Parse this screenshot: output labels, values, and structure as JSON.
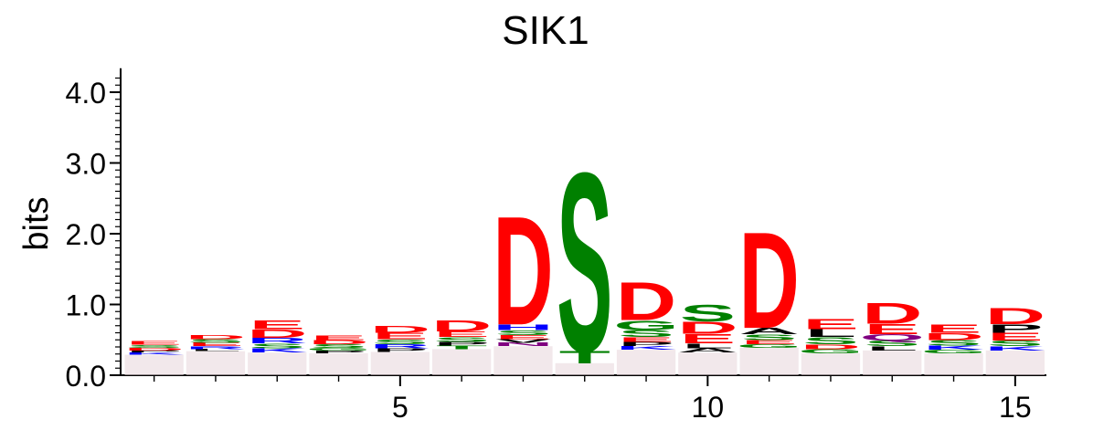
{
  "chart_data": {
    "type": "sequence-logo",
    "title": "SIK1",
    "ylabel": "bits",
    "xlabel": "",
    "ylim": [
      0,
      4.3
    ],
    "y_ticks": [
      "0.0",
      "1.0",
      "2.0",
      "3.0",
      "4.0"
    ],
    "x_ticks": [
      5,
      10,
      15
    ],
    "positions": [
      1,
      2,
      3,
      4,
      5,
      6,
      7,
      8,
      9,
      10,
      11,
      12,
      13,
      14,
      15
    ],
    "colors": {
      "acidic": "#ff0000",
      "polar": "#008000",
      "basic": "#0000ff",
      "hydrophobic": "#000000",
      "amide": "#800080"
    },
    "columns": [
      {
        "position": 1,
        "total_bits": 0.48,
        "stacks": [
          {
            "letter": "E",
            "bits": 0.05,
            "color": "#ff0000"
          },
          {
            "letter": "D",
            "bits": 0.04,
            "color": "#ff0000"
          },
          {
            "letter": "S",
            "bits": 0.04,
            "color": "#008000"
          },
          {
            "letter": "K",
            "bits": 0.03,
            "color": "#0000ff"
          },
          {
            "letter": "P",
            "bits": 0.03,
            "color": "#000000"
          }
        ]
      },
      {
        "position": 2,
        "total_bits": 0.57,
        "stacks": [
          {
            "letter": "D",
            "bits": 0.06,
            "color": "#ff0000"
          },
          {
            "letter": "E",
            "bits": 0.05,
            "color": "#ff0000"
          },
          {
            "letter": "S",
            "bits": 0.05,
            "color": "#008000"
          },
          {
            "letter": "R",
            "bits": 0.04,
            "color": "#0000ff"
          },
          {
            "letter": "L",
            "bits": 0.03,
            "color": "#000000"
          }
        ]
      },
      {
        "position": 3,
        "total_bits": 0.78,
        "stacks": [
          {
            "letter": "E",
            "bits": 0.13,
            "color": "#ff0000"
          },
          {
            "letter": "D",
            "bits": 0.12,
            "color": "#ff0000"
          },
          {
            "letter": "R",
            "bits": 0.08,
            "color": "#0000ff"
          },
          {
            "letter": "S",
            "bits": 0.07,
            "color": "#008000"
          },
          {
            "letter": "K",
            "bits": 0.06,
            "color": "#0000ff"
          }
        ]
      },
      {
        "position": 4,
        "total_bits": 0.57,
        "stacks": [
          {
            "letter": "E",
            "bits": 0.07,
            "color": "#ff0000"
          },
          {
            "letter": "D",
            "bits": 0.06,
            "color": "#ff0000"
          },
          {
            "letter": "S",
            "bits": 0.05,
            "color": "#008000"
          },
          {
            "letter": "P",
            "bits": 0.04,
            "color": "#000000"
          },
          {
            "letter": "G",
            "bits": 0.04,
            "color": "#008000"
          }
        ]
      },
      {
        "position": 5,
        "total_bits": 0.7,
        "stacks": [
          {
            "letter": "D",
            "bits": 0.1,
            "color": "#ff0000"
          },
          {
            "letter": "E",
            "bits": 0.09,
            "color": "#ff0000"
          },
          {
            "letter": "S",
            "bits": 0.07,
            "color": "#008000"
          },
          {
            "letter": "R",
            "bits": 0.06,
            "color": "#0000ff"
          },
          {
            "letter": "P",
            "bits": 0.05,
            "color": "#000000"
          }
        ]
      },
      {
        "position": 6,
        "total_bits": 0.78,
        "stacks": [
          {
            "letter": "D",
            "bits": 0.16,
            "color": "#ff0000"
          },
          {
            "letter": "E",
            "bits": 0.08,
            "color": "#ff0000"
          },
          {
            "letter": "S",
            "bits": 0.07,
            "color": "#008000"
          },
          {
            "letter": "T",
            "bits": 0.05,
            "color": "#008000"
          },
          {
            "letter": "P",
            "bits": 0.05,
            "color": "#000000"
          }
        ]
      },
      {
        "position": 7,
        "total_bits": 2.3,
        "stacks": [
          {
            "letter": "D",
            "bits": 1.58,
            "color": "#ff0000"
          },
          {
            "letter": "H",
            "bits": 0.08,
            "color": "#0000ff"
          },
          {
            "letter": "S",
            "bits": 0.07,
            "color": "#008000"
          },
          {
            "letter": "E",
            "bits": 0.06,
            "color": "#ff0000"
          },
          {
            "letter": "N",
            "bits": 0.05,
            "color": "#800080"
          },
          {
            "letter": "V",
            "bits": 0.05,
            "color": "#000000"
          }
        ]
      },
      {
        "position": 8,
        "total_bits": 2.95,
        "stacks": [
          {
            "letter": "S",
            "bits": 2.6,
            "color": "#008000"
          },
          {
            "letter": "T",
            "bits": 0.18,
            "color": "#008000"
          }
        ]
      },
      {
        "position": 9,
        "total_bits": 1.33,
        "stacks": [
          {
            "letter": "D",
            "bits": 0.55,
            "color": "#ff0000"
          },
          {
            "letter": "G",
            "bits": 0.14,
            "color": "#008000"
          },
          {
            "letter": "S",
            "bits": 0.1,
            "color": "#008000"
          },
          {
            "letter": "E",
            "bits": 0.07,
            "color": "#ff0000"
          },
          {
            "letter": "P",
            "bits": 0.06,
            "color": "#000000"
          },
          {
            "letter": "K",
            "bits": 0.05,
            "color": "#0000ff"
          }
        ]
      },
      {
        "position": 10,
        "total_bits": 1.0,
        "stacks": [
          {
            "letter": "S",
            "bits": 0.24,
            "color": "#008000"
          },
          {
            "letter": "D",
            "bits": 0.17,
            "color": "#ff0000"
          },
          {
            "letter": "E",
            "bits": 0.14,
            "color": "#ff0000"
          },
          {
            "letter": "L",
            "bits": 0.07,
            "color": "#000000"
          },
          {
            "letter": "A",
            "bits": 0.06,
            "color": "#000000"
          }
        ]
      },
      {
        "position": 11,
        "total_bits": 2.07,
        "stacks": [
          {
            "letter": "D",
            "bits": 1.4,
            "color": "#ff0000"
          },
          {
            "letter": "A",
            "bits": 0.09,
            "color": "#000000"
          },
          {
            "letter": "S",
            "bits": 0.08,
            "color": "#008000"
          },
          {
            "letter": "E",
            "bits": 0.06,
            "color": "#ff0000"
          },
          {
            "letter": "G",
            "bits": 0.05,
            "color": "#008000"
          }
        ]
      },
      {
        "position": 12,
        "total_bits": 0.8,
        "stacks": [
          {
            "letter": "E",
            "bits": 0.15,
            "color": "#ff0000"
          },
          {
            "letter": "L",
            "bits": 0.11,
            "color": "#000000"
          },
          {
            "letter": "S",
            "bits": 0.1,
            "color": "#008000"
          },
          {
            "letter": "D",
            "bits": 0.07,
            "color": "#ff0000"
          },
          {
            "letter": "G",
            "bits": 0.06,
            "color": "#008000"
          }
        ]
      },
      {
        "position": 13,
        "total_bits": 1.03,
        "stacks": [
          {
            "letter": "D",
            "bits": 0.3,
            "color": "#ff0000"
          },
          {
            "letter": "E",
            "bits": 0.15,
            "color": "#ff0000"
          },
          {
            "letter": "Q",
            "bits": 0.09,
            "color": "#800080"
          },
          {
            "letter": "S",
            "bits": 0.08,
            "color": "#008000"
          },
          {
            "letter": "L",
            "bits": 0.06,
            "color": "#000000"
          }
        ]
      },
      {
        "position": 14,
        "total_bits": 0.72,
        "stacks": [
          {
            "letter": "E",
            "bits": 0.12,
            "color": "#ff0000"
          },
          {
            "letter": "D",
            "bits": 0.1,
            "color": "#ff0000"
          },
          {
            "letter": "S",
            "bits": 0.08,
            "color": "#008000"
          },
          {
            "letter": "K",
            "bits": 0.06,
            "color": "#0000ff"
          },
          {
            "letter": "G",
            "bits": 0.05,
            "color": "#008000"
          }
        ]
      },
      {
        "position": 15,
        "total_bits": 0.95,
        "stacks": [
          {
            "letter": "D",
            "bits": 0.23,
            "color": "#ff0000"
          },
          {
            "letter": "P",
            "bits": 0.12,
            "color": "#000000"
          },
          {
            "letter": "E",
            "bits": 0.11,
            "color": "#ff0000"
          },
          {
            "letter": "S",
            "bits": 0.08,
            "color": "#008000"
          },
          {
            "letter": "K",
            "bits": 0.06,
            "color": "#0000ff"
          }
        ]
      }
    ]
  }
}
